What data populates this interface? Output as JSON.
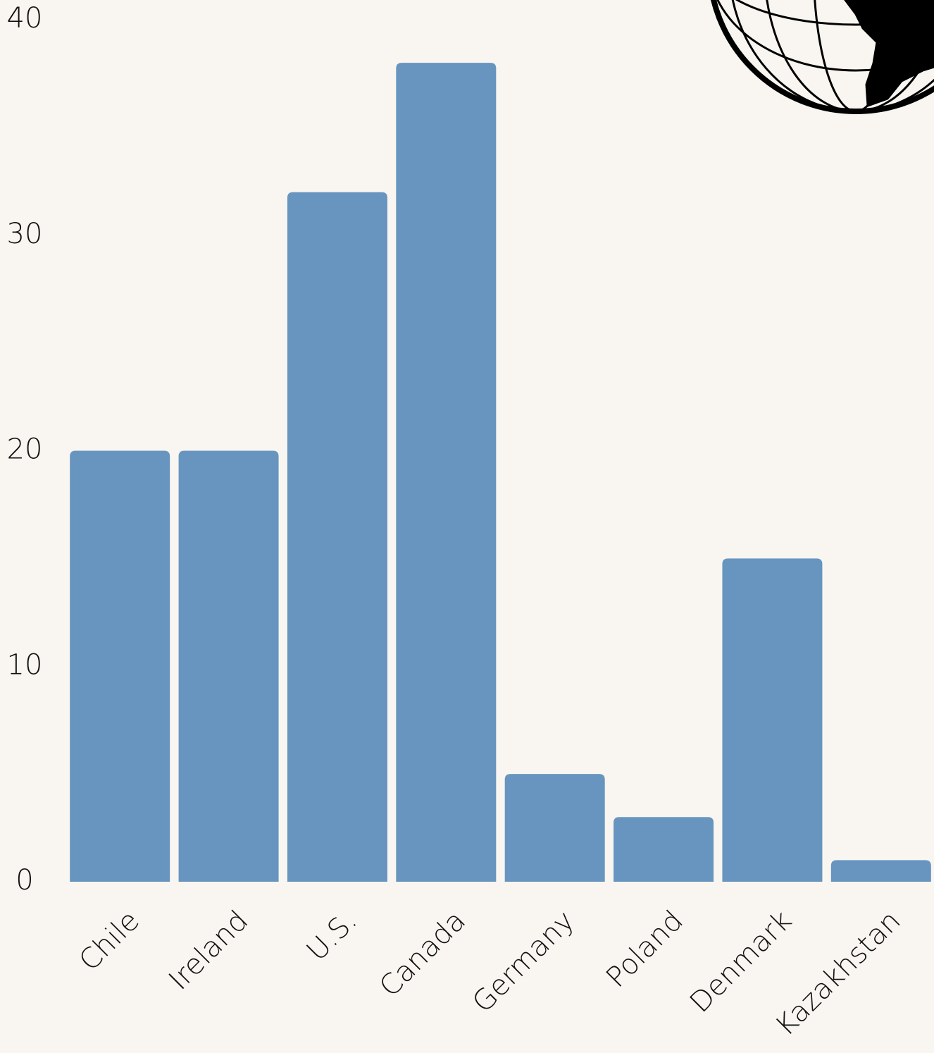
{
  "chart_data": {
    "type": "bar",
    "categories": [
      "Chile",
      "Ireland",
      "U.S.",
      "Canada",
      "Germany",
      "Poland",
      "Denmark",
      "Kazakhstan"
    ],
    "values": [
      20,
      20,
      32,
      38,
      5,
      3,
      15,
      1
    ],
    "color": "#6795bf",
    "ylim": [
      0,
      40
    ],
    "yticks": [
      0,
      10,
      20,
      30,
      40
    ],
    "grid": false
  }
}
